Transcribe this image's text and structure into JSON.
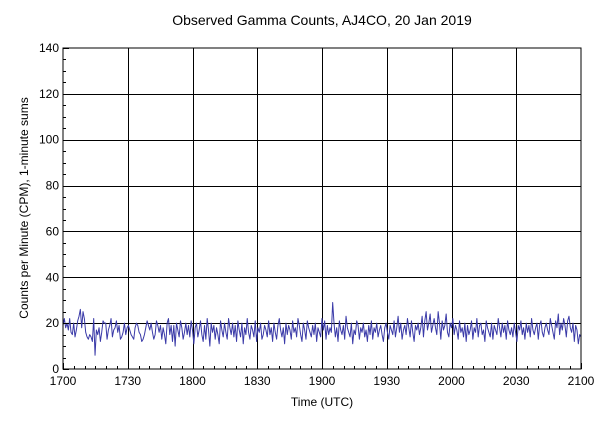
{
  "chart_data": {
    "type": "line",
    "title": "Observed Gamma Counts, AJ4CO, 20 Jan 2019",
    "xlabel": "Time (UTC)",
    "ylabel": "Counts per Minute (CPM), 1-minute sums",
    "xlim": [
      1700,
      2100
    ],
    "ylim": [
      0,
      140
    ],
    "x_ticks": [
      "1700",
      "1730",
      "1800",
      "1830",
      "1900",
      "1930",
      "2000",
      "2030",
      "2100"
    ],
    "y_ticks": [
      "0",
      "20",
      "40",
      "60",
      "80",
      "100",
      "120",
      "140"
    ],
    "grid": true,
    "legend": "none",
    "x_units": "minutes after 17:00 UTC",
    "series": [
      {
        "color": "#3a3aa8",
        "values": [
          19,
          22,
          18,
          20,
          17,
          22,
          16,
          15,
          20,
          14,
          17,
          21,
          23,
          26,
          18,
          25,
          22,
          16,
          14,
          13,
          15,
          14,
          12,
          22,
          6,
          17,
          15,
          18,
          12,
          16,
          21,
          20,
          20,
          13,
          17,
          19,
          22,
          14,
          17,
          18,
          21,
          16,
          19,
          13,
          14,
          16,
          20,
          15,
          18,
          19,
          17,
          15,
          14,
          13,
          18,
          20,
          19,
          16,
          15,
          12,
          13,
          15,
          18,
          21,
          19,
          17,
          20,
          16,
          13,
          15,
          21,
          19,
          16,
          19,
          13,
          18,
          15,
          11,
          20,
          22,
          15,
          19,
          12,
          19,
          10,
          20,
          17,
          14,
          21,
          18,
          13,
          16,
          20,
          15,
          19,
          14,
          21,
          17,
          11,
          18,
          20,
          14,
          17,
          21,
          15,
          12,
          19,
          13,
          22,
          17,
          10,
          20,
          16,
          19,
          13,
          18,
          15,
          11,
          21,
          17,
          14,
          20,
          16,
          13,
          22,
          18,
          15,
          20,
          14,
          19,
          12,
          21,
          17,
          14,
          20,
          11,
          18,
          15,
          22,
          16,
          13,
          19,
          17,
          14,
          21,
          12,
          18,
          16,
          20,
          13,
          15,
          19,
          17,
          14,
          21,
          15,
          18,
          12,
          20,
          16,
          13,
          19,
          22,
          17,
          14,
          18,
          11,
          20,
          15,
          19,
          17,
          13,
          21,
          16,
          18,
          14,
          22,
          19,
          15,
          12,
          20,
          17,
          13,
          21,
          18,
          16,
          14,
          19,
          15,
          20,
          12,
          18,
          16,
          14,
          22,
          17,
          21,
          13,
          19,
          15,
          18,
          16,
          29,
          20,
          14,
          18,
          12,
          21,
          17,
          15,
          19,
          13,
          23,
          18,
          16,
          14,
          20,
          11,
          17,
          15,
          21,
          19,
          13,
          18,
          16,
          20,
          14,
          17,
          12,
          19,
          15,
          21,
          13,
          18,
          16,
          20,
          14,
          17,
          19,
          15,
          12,
          18,
          20,
          16,
          13,
          19,
          17,
          15,
          21,
          14,
          18,
          23,
          16,
          20,
          13,
          17,
          19,
          15,
          22,
          18,
          14,
          21,
          16,
          12,
          19,
          17,
          20,
          15,
          18,
          23,
          14,
          21,
          25,
          17,
          20,
          24,
          16,
          19,
          22,
          18,
          15,
          25,
          20,
          13,
          21,
          17,
          19,
          24,
          16,
          14,
          20,
          18,
          22,
          15,
          19,
          17,
          13,
          21,
          16,
          18,
          14,
          20,
          12,
          19,
          15,
          17,
          21,
          13,
          18,
          16,
          22,
          14,
          19,
          20,
          15,
          17,
          12,
          21,
          18,
          16,
          14,
          20,
          13,
          19,
          17,
          15,
          22,
          18,
          14,
          20,
          16,
          19,
          13,
          21,
          17,
          15,
          18,
          14,
          20,
          16,
          12,
          19,
          17,
          21,
          15,
          18,
          13,
          20,
          16,
          19,
          14,
          22,
          17,
          15,
          18,
          20,
          13,
          19,
          21,
          16,
          14,
          18,
          20,
          17,
          15,
          22,
          19,
          16,
          13,
          21,
          18,
          24,
          15,
          20,
          17,
          22,
          19,
          14,
          21,
          23,
          18,
          16,
          20,
          12,
          19,
          17,
          11,
          15,
          14
        ]
      }
    ]
  }
}
